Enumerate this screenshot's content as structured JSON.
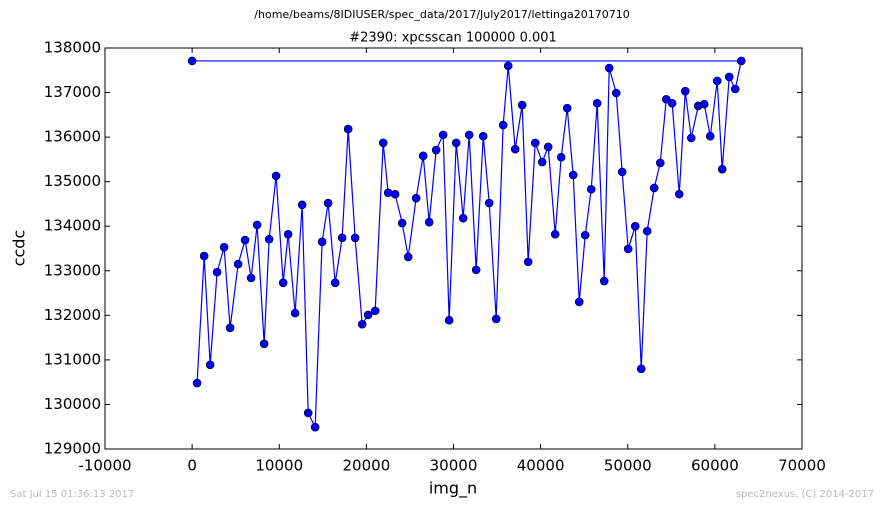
{
  "chart_data": {
    "type": "line",
    "title": "/home/beams/8IDIUSER/spec_data/2017/July2017/lettinga20170710",
    "subtitle": "#2390: xpcsscan 100000 0.001",
    "xlabel": "img_n",
    "ylabel": "ccdc",
    "annotations": [
      "Sat Jul 15 01:36:13 2017",
      "spec2nexus, (C) 2014-2017"
    ],
    "color": "#0000ff",
    "x": [
      570,
      1380,
      2070,
      2870,
      3670,
      4360,
      5280,
      6080,
      6770,
      7460,
      8270,
      8840,
      9640,
      10450,
      11020,
      11820,
      12630,
      13320,
      14120,
      14920,
      15610,
      16420,
      17220,
      17910,
      18710,
      19520,
      20200,
      21010,
      21930,
      22500,
      23300,
      24110,
      24800,
      25710,
      26520,
      27210,
      28010,
      28810,
      29500,
      30310,
      31110,
      31800,
      32600,
      33410,
      34100,
      34900,
      35700,
      36280,
      37080,
      37880,
      38570,
      39380,
      40180,
      40870,
      41670,
      42360,
      43050,
      43740,
      44430,
      45120,
      45810,
      46490,
      47300,
      47870,
      48680,
      49360,
      50050,
      50860,
      51550,
      52230,
      53040,
      53730,
      54420,
      55100,
      55910,
      56600,
      57290,
      58090,
      58780,
      59470,
      60270,
      60840,
      61650,
      62340,
      63030,
      0
    ],
    "values": [
      130480,
      133330,
      130890,
      132970,
      133530,
      131720,
      133150,
      133690,
      132840,
      134030,
      131360,
      133710,
      135130,
      132730,
      133820,
      132050,
      134480,
      129810,
      129490,
      133650,
      134520,
      132730,
      133740,
      136180,
      133740,
      131800,
      132010,
      132100,
      135870,
      134750,
      134720,
      134070,
      133310,
      134630,
      135580,
      134090,
      135710,
      136050,
      131890,
      135870,
      134180,
      136050,
      133020,
      136020,
      134520,
      131920,
      136270,
      137600,
      135730,
      136720,
      133200,
      135870,
      135440,
      135780,
      133820,
      135550,
      136650,
      135150,
      132300,
      133800,
      134830,
      136760,
      132770,
      137550,
      136990,
      135220,
      133490,
      134000,
      130800,
      133890,
      134860,
      135420,
      136850,
      136760,
      134720,
      137030,
      135980,
      136700,
      136740,
      136020,
      137260,
      135280,
      137350,
      137080,
      137710,
      137710
    ],
    "xlim": [
      -10000,
      70000
    ],
    "ylim": [
      129000,
      138000
    ],
    "xticks": [
      -10000,
      0,
      10000,
      20000,
      30000,
      40000,
      50000,
      60000,
      70000
    ],
    "yticks": [
      129000,
      130000,
      131000,
      132000,
      133000,
      134000,
      135000,
      136000,
      137000,
      138000
    ],
    "grid": false
  }
}
